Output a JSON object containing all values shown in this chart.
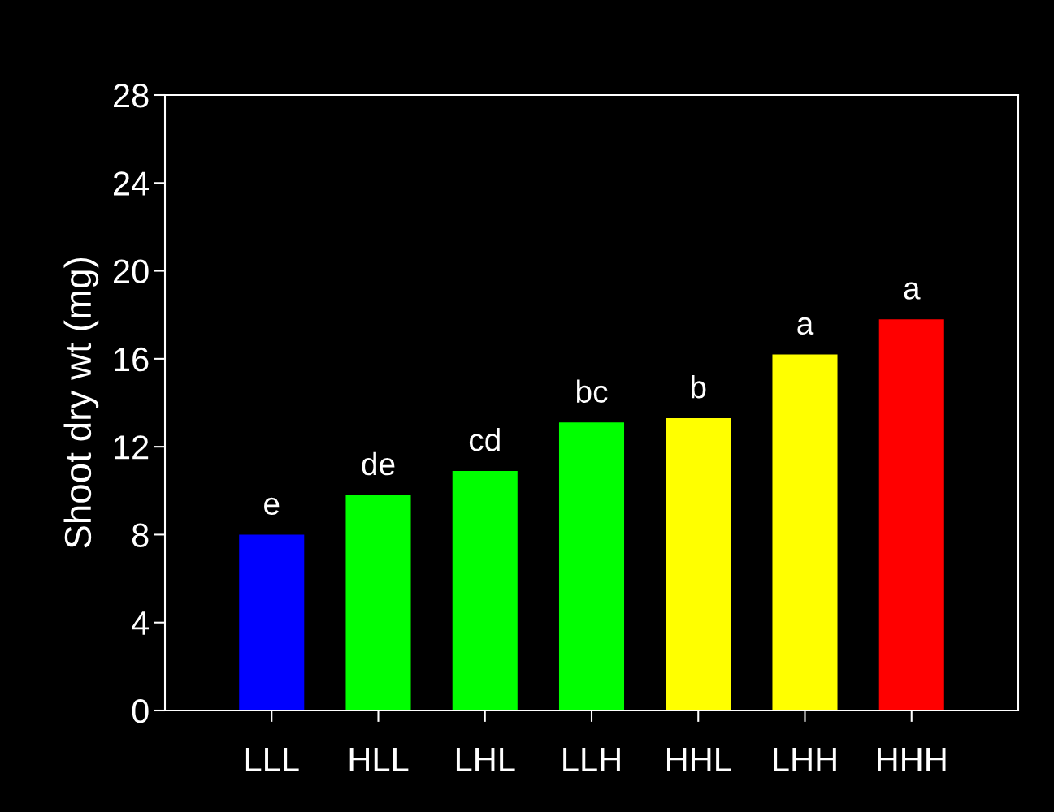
{
  "chart_data": {
    "type": "bar",
    "ylabel": "Shoot dry wt (mg)",
    "categories": [
      "LLL",
      "HLL",
      "LHL",
      "LLH",
      "HHL",
      "LHH",
      "HHH"
    ],
    "values": [
      8.0,
      9.8,
      10.9,
      13.1,
      13.3,
      16.2,
      17.8
    ],
    "colors": [
      "#0000ff",
      "#00ff00",
      "#00ff00",
      "#00ff00",
      "#ffff00",
      "#ffff00",
      "#ff0000"
    ],
    "ylim": [
      0,
      28
    ],
    "yticks": [
      0,
      4,
      8,
      12,
      16,
      20,
      24,
      28
    ],
    "grid": false,
    "legend": false,
    "annotations": [
      {
        "text": "e",
        "x": "LLL",
        "y": 8.0
      },
      {
        "text": "de",
        "x": "HLL",
        "y": 9.8
      },
      {
        "text": "cd",
        "x": "LHL",
        "y": 10.9
      },
      {
        "text": "bc",
        "x": "LLH",
        "y": 13.1
      },
      {
        "text": "b",
        "x": "HHL",
        "y": 13.3
      },
      {
        "text": "a",
        "x": "LHH",
        "y": 16.2
      },
      {
        "text": "a",
        "x": "HHH",
        "y": 17.8
      }
    ]
  }
}
